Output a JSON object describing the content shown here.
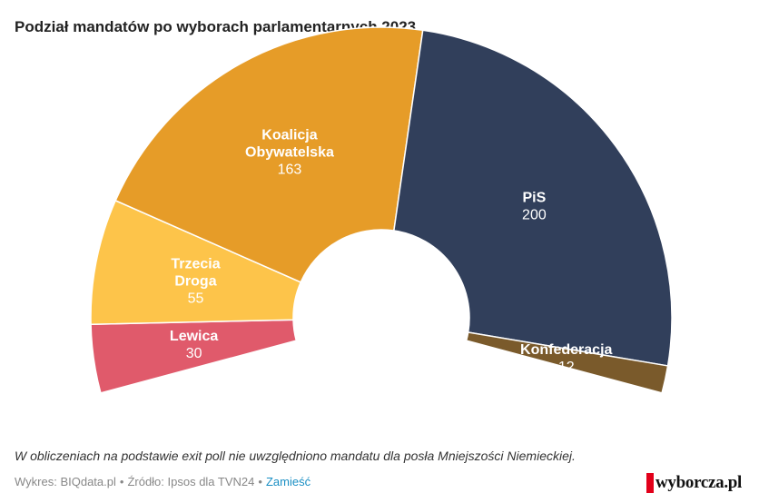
{
  "chart_data": {
    "type": "pie",
    "title": "Podział mandatów po wyborach parlamentarnych 2023",
    "series": [
      {
        "name": "Lewica",
        "value": 30,
        "color": "#e05a6b",
        "label_lines": [
          "Lewica"
        ]
      },
      {
        "name": "Trzecia Droga",
        "value": 55,
        "color": "#fdc44a",
        "label_lines": [
          "Trzecia",
          "Droga"
        ]
      },
      {
        "name": "Koalicja Obywatelska",
        "value": 163,
        "color": "#e69c28",
        "label_lines": [
          "Koalicja",
          "Obywatelska"
        ]
      },
      {
        "name": "PiS",
        "value": 200,
        "color": "#313f5b",
        "label_lines": [
          "PiS"
        ]
      },
      {
        "name": "Konfederacja",
        "value": 12,
        "color": "#7a5a2b",
        "label_lines": [
          "Konfederacja"
        ]
      }
    ]
  },
  "note": "W obliczeniach na podstawie exit poll nie uwzględniono mandatu dla posła Mniejszości Niemieckiej.",
  "footer": {
    "author": "Wykres: BIQdata.pl",
    "separator": "•",
    "source": "Źródło: Ipsos dla TVN24",
    "embed_link": "Zamieść"
  },
  "logo": {
    "text": "wyborcza.pl",
    "mark_color": "#e2001a"
  }
}
